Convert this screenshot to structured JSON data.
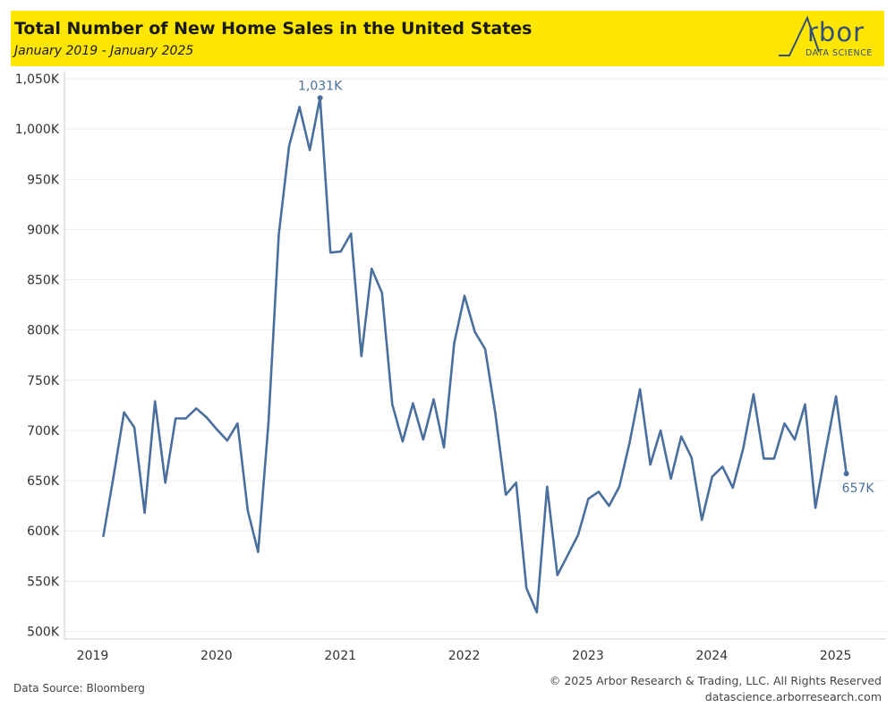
{
  "header": {
    "title": "Total Number of New Home Sales in the United States",
    "subtitle": "January 2019 - January 2025"
  },
  "logo": {
    "word": "rbor",
    "sub": "DATA SCIENCE"
  },
  "footer": {
    "source": "Data Source: Bloomberg",
    "copyright": "© 2025 Arbor Research & Trading, LLC. All Rights Reserved",
    "url": "datascience.arborresearch.com"
  },
  "colors": {
    "header_bg": "#ffe600",
    "line": "#4a6f9c",
    "logo": "#33507a"
  },
  "chart_data": {
    "type": "line",
    "title": "Total Number of New Home Sales in the United States",
    "xlabel": "",
    "ylabel": "",
    "x_start": "2019-01",
    "x_end": "2025-01",
    "xticks": [
      "2019",
      "2020",
      "2021",
      "2022",
      "2023",
      "2024",
      "2025"
    ],
    "yticks": [
      "500K",
      "550K",
      "600K",
      "650K",
      "700K",
      "750K",
      "800K",
      "850K",
      "900K",
      "950K",
      "1,000K",
      "1,050K"
    ],
    "ylim": [
      500,
      1050
    ],
    "grid": true,
    "series": [
      {
        "values": [
          595,
          655,
          718,
          703,
          618,
          729,
          648,
          712,
          712,
          722,
          713,
          701,
          690,
          707,
          620,
          579,
          708,
          895,
          983,
          1022,
          979,
          1031,
          877,
          878,
          896,
          774,
          861,
          837,
          726,
          689,
          727,
          691,
          731,
          683,
          787,
          834,
          798,
          781,
          716,
          636,
          648,
          543,
          519,
          644,
          556,
          576,
          596,
          632,
          639,
          625,
          644,
          688,
          741,
          666,
          700,
          652,
          694,
          673,
          611,
          654,
          664,
          643,
          682,
          736,
          672,
          672,
          707,
          691,
          726,
          623,
          680,
          734,
          657
        ]
      }
    ],
    "annotations": [
      {
        "label": "1,031K",
        "index": 21
      },
      {
        "label": "657K",
        "index": 72
      }
    ]
  }
}
